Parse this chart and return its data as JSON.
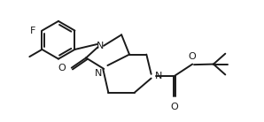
{
  "background_color": "#ffffff",
  "line_color": "#1a1a1a",
  "line_width": 1.4,
  "font_size_labels": 8.0,
  "figsize": [
    2.98,
    1.38
  ],
  "dpi": 100,
  "xlim": [
    0.0,
    10.0
  ],
  "ylim": [
    0.0,
    4.6
  ]
}
